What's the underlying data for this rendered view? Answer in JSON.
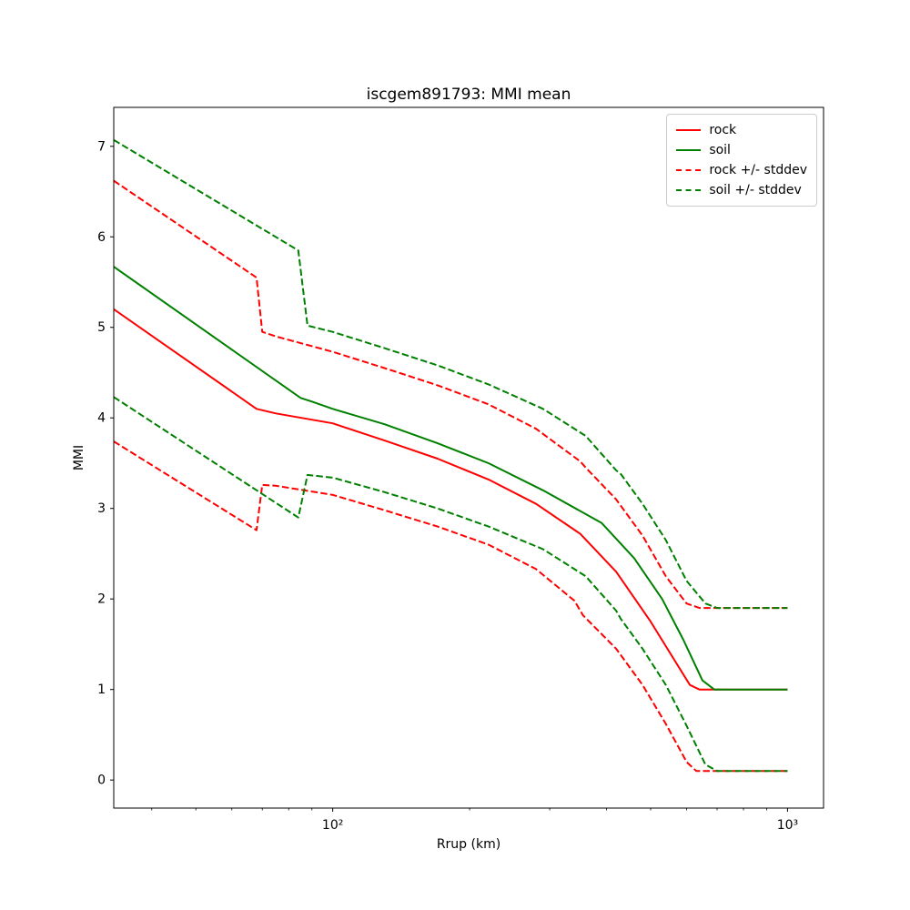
{
  "figure": {
    "background": "#ffffff",
    "axes_edge_color": "#000000"
  },
  "chart_data": {
    "type": "line",
    "title": "iscgem891793: MMI mean",
    "xlabel": "Rrup (km)",
    "ylabel": "MMI",
    "x_scale": "log",
    "grid": false,
    "legend_position": "upper right",
    "xlim": [
      33,
      1200
    ],
    "ylim": [
      -0.31,
      7.43
    ],
    "x_ticks": [
      {
        "value": 100,
        "label": "10²"
      },
      {
        "value": 1000,
        "label": "10³"
      }
    ],
    "x_minor_ticks": [
      40,
      50,
      60,
      70,
      80,
      90,
      200,
      300,
      400,
      500,
      600,
      700,
      800,
      900
    ],
    "y_ticks": [
      0,
      1,
      2,
      3,
      4,
      5,
      6,
      7
    ],
    "legend": [
      {
        "label": "rock",
        "color": "#ff0000",
        "dash": "solid"
      },
      {
        "label": "soil",
        "color": "#008000",
        "dash": "solid"
      },
      {
        "label": "rock +/- stddev",
        "color": "#ff0000",
        "dash": "dashed"
      },
      {
        "label": "soil +/- stddev",
        "color": "#008000",
        "dash": "dashed"
      }
    ],
    "series": [
      {
        "id": "rock",
        "name": "rock",
        "color": "#ff0000",
        "dash": "solid",
        "x": [
          33,
          68,
          75,
          100,
          130,
          170,
          220,
          280,
          350,
          420,
          500,
          560,
          610,
          640,
          1000
        ],
        "y": [
          5.2,
          4.1,
          4.05,
          3.94,
          3.75,
          3.55,
          3.32,
          3.05,
          2.72,
          2.3,
          1.75,
          1.35,
          1.05,
          1.0,
          1.0
        ]
      },
      {
        "id": "soil",
        "name": "soil",
        "color": "#008000",
        "dash": "solid",
        "x": [
          33,
          85,
          90,
          100,
          130,
          170,
          220,
          290,
          390,
          460,
          530,
          590,
          650,
          690,
          1000
        ],
        "y": [
          5.67,
          4.22,
          4.18,
          4.1,
          3.93,
          3.72,
          3.5,
          3.2,
          2.84,
          2.45,
          2.0,
          1.55,
          1.1,
          1.0,
          1.0
        ]
      },
      {
        "id": "rock-plus-stddev",
        "name": "rock + stddev",
        "color": "#ff0000",
        "dash": "dashed",
        "x": [
          33,
          68,
          70,
          75,
          100,
          130,
          170,
          220,
          280,
          350,
          360,
          420,
          480,
          540,
          600,
          640,
          1000
        ],
        "y": [
          6.62,
          5.55,
          4.95,
          4.9,
          4.73,
          4.55,
          4.36,
          4.15,
          3.88,
          3.52,
          3.45,
          3.1,
          2.7,
          2.25,
          1.95,
          1.9,
          1.9
        ]
      },
      {
        "id": "rock-minus-stddev",
        "name": "rock - stddev",
        "color": "#ff0000",
        "dash": "dashed",
        "x": [
          33,
          68,
          70,
          75,
          100,
          130,
          170,
          220,
          280,
          340,
          355,
          420,
          480,
          540,
          600,
          630,
          1000
        ],
        "y": [
          3.74,
          2.76,
          3.26,
          3.25,
          3.15,
          2.98,
          2.8,
          2.6,
          2.33,
          1.98,
          1.82,
          1.45,
          1.05,
          0.62,
          0.2,
          0.1,
          0.1
        ]
      },
      {
        "id": "soil-plus-stddev",
        "name": "soil + stddev",
        "color": "#008000",
        "dash": "dashed",
        "x": [
          33,
          84,
          88,
          100,
          130,
          170,
          220,
          290,
          360,
          420,
          430,
          480,
          540,
          600,
          660,
          700,
          1000
        ],
        "y": [
          7.07,
          5.85,
          5.02,
          4.95,
          4.77,
          4.58,
          4.37,
          4.1,
          3.8,
          3.42,
          3.38,
          3.05,
          2.65,
          2.2,
          1.95,
          1.9,
          1.9
        ]
      },
      {
        "id": "soil-minus-stddev",
        "name": "soil - stddev",
        "color": "#008000",
        "dash": "dashed",
        "x": [
          33,
          84,
          88,
          100,
          130,
          170,
          220,
          290,
          360,
          420,
          430,
          480,
          540,
          600,
          660,
          700,
          1000
        ],
        "y": [
          4.23,
          2.9,
          3.37,
          3.34,
          3.18,
          3.0,
          2.8,
          2.55,
          2.25,
          1.87,
          1.78,
          1.45,
          1.05,
          0.6,
          0.17,
          0.1,
          0.1
        ]
      }
    ]
  }
}
